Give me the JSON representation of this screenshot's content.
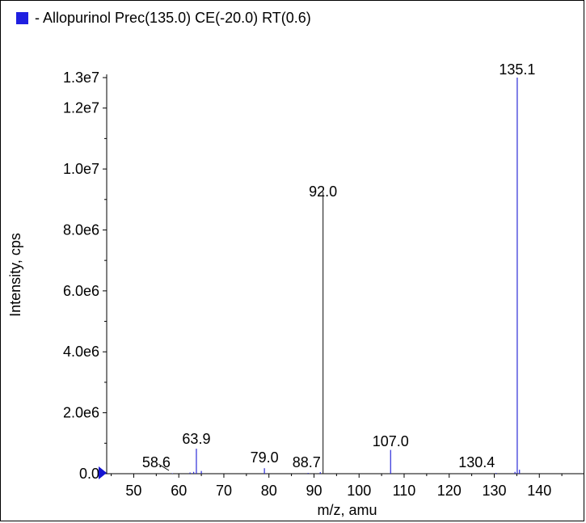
{
  "legend": {
    "label": "- Allopurinol Prec(135.0) CE(-20.0) RT(0.6)",
    "swatch_color": "#1f1fe0"
  },
  "colors": {
    "series": "#2a2ad8",
    "dark_peak": "#333333",
    "axis": "#000000",
    "marker": "#1414d2"
  },
  "chart_data": {
    "type": "bar",
    "xlabel": "m/z, amu",
    "ylabel": "Intensity, cps",
    "xlim": [
      44,
      150
    ],
    "ylim": [
      0,
      13300000
    ],
    "x_ticks": [
      50,
      60,
      70,
      80,
      90,
      100,
      110,
      120,
      130,
      140
    ],
    "x_tick_labels": [
      "50",
      "60",
      "70",
      "80",
      "90",
      "100",
      "110",
      "120",
      "130",
      "140"
    ],
    "y_ticks": [
      0,
      2000000,
      4000000,
      6000000,
      8000000,
      10000000,
      12000000,
      13000000
    ],
    "y_tick_labels": [
      "0.0",
      "2.0e6",
      "4.0e6",
      "6.0e6",
      "8.0e6",
      "1.0e7",
      "1.2e7",
      "1.3e7"
    ],
    "peaks": [
      {
        "x": 135.1,
        "y": 13000000,
        "label": "135.1"
      },
      {
        "x": 92.0,
        "y": 9250000,
        "label": "92.0"
      },
      {
        "x": 107.0,
        "y": 780000,
        "label": "107.0"
      },
      {
        "x": 63.9,
        "y": 820000,
        "label": "63.9"
      },
      {
        "x": 79.0,
        "y": 180000,
        "label": "79.0"
      },
      {
        "x": 88.7,
        "y": 25000,
        "label": "88.7"
      },
      {
        "x": 130.4,
        "y": 25000,
        "label": "130.4"
      },
      {
        "x": 58.6,
        "y": 15000,
        "label": "58.6"
      },
      {
        "x": 62.5,
        "y": 40000,
        "label": ""
      },
      {
        "x": 63.3,
        "y": 60000,
        "label": ""
      },
      {
        "x": 65.0,
        "y": 90000,
        "label": ""
      },
      {
        "x": 91.4,
        "y": 50000,
        "label": ""
      },
      {
        "x": 134.6,
        "y": 60000,
        "label": ""
      },
      {
        "x": 135.6,
        "y": 130000,
        "label": ""
      }
    ]
  }
}
